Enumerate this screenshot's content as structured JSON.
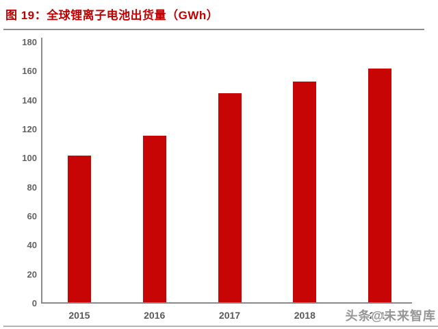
{
  "title": {
    "label": "图 19：全球锂离子电池出货量（GWh）",
    "color": "#C00000"
  },
  "watermark": {
    "label": "头条@未来智库"
  },
  "colors": {
    "bar": "#C80505",
    "title": "#C00000",
    "axis": "#898989",
    "tick_text": "#595959",
    "divider": "#8c8c8c"
  },
  "chart_data": {
    "type": "bar",
    "title": "图 19：全球锂离子电池出货量（GWh）",
    "categories": [
      "2015",
      "2016",
      "2017",
      "2018",
      "2019"
    ],
    "values": [
      101,
      115,
      144,
      152,
      161
    ],
    "unit": "GWh",
    "xlabel": "",
    "ylabel": "",
    "ylim": [
      0,
      180
    ],
    "yticks": [
      0,
      20,
      40,
      60,
      80,
      100,
      120,
      140,
      160,
      180
    ],
    "grid": false,
    "legend": null,
    "bar_color": "#C80505"
  }
}
